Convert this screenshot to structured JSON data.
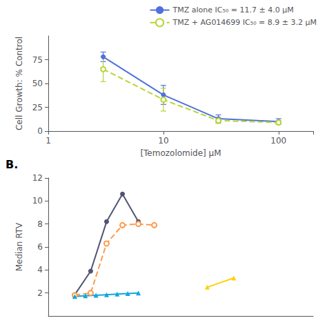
{
  "chart_data": [
    {
      "type": "line",
      "xlabel": "[Temozolomide] μM",
      "ylabel": "Cell Growth: % Control",
      "log": "x",
      "xlim": [
        1,
        200
      ],
      "xticks": [
        1,
        10,
        100
      ],
      "ylim": [
        0,
        100
      ],
      "yticks": [
        0,
        25,
        50,
        75
      ],
      "grid": false,
      "legend": "upper right",
      "series": [
        {
          "name": "TMZ alone IC₅₀ = 11.7 ± 4.0 μM",
          "x": [
            3,
            10,
            30,
            100
          ],
          "values": [
            78,
            38,
            13,
            10
          ],
          "errors": [
            5,
            10,
            4,
            3
          ],
          "marker": "circle",
          "line_style": "solid"
        },
        {
          "name": "TMZ + AG014699 IC₅₀ = 8.9 ± 3.2 μM",
          "x": [
            3,
            10,
            30,
            100
          ],
          "values": [
            65,
            33,
            11,
            9
          ],
          "errors": [
            13,
            12,
            3,
            2
          ],
          "marker": "open_circle",
          "line_style": "dashed"
        }
      ]
    },
    {
      "type": "line",
      "annotations": [
        "B."
      ],
      "ylabel": "Median RTV",
      "xlim": [
        0.5,
        5.5
      ],
      "ylim": [
        0,
        12
      ],
      "yticks": [
        2,
        4,
        6,
        8,
        10,
        12
      ],
      "grid": false,
      "tick_labels": "y",
      "series": [
        {
          "x": [
            1,
            1.3,
            1.6,
            1.9,
            2.2
          ],
          "values": [
            1.85,
            3.9,
            8.2,
            10.6,
            8.2
          ],
          "marker": "circle",
          "line_style": "solid"
        },
        {
          "x": [
            1,
            1.3,
            1.6,
            1.9,
            2.2,
            2.5
          ],
          "values": [
            1.8,
            2.0,
            6.3,
            7.9,
            8.0,
            7.9
          ],
          "marker": "open_circle",
          "line_style": "dashed"
        },
        {
          "x": [
            1,
            1.2,
            1.4,
            1.6,
            1.8,
            2.0,
            2.2
          ],
          "values": [
            1.7,
            1.75,
            1.8,
            1.85,
            1.9,
            1.95,
            2.0
          ],
          "marker": "triangle",
          "line_style": "solid"
        },
        {
          "x": [
            3.5,
            4.0
          ],
          "values": [
            2.5,
            3.3
          ],
          "marker": "triangle",
          "line_style": "solid"
        }
      ]
    }
  ]
}
